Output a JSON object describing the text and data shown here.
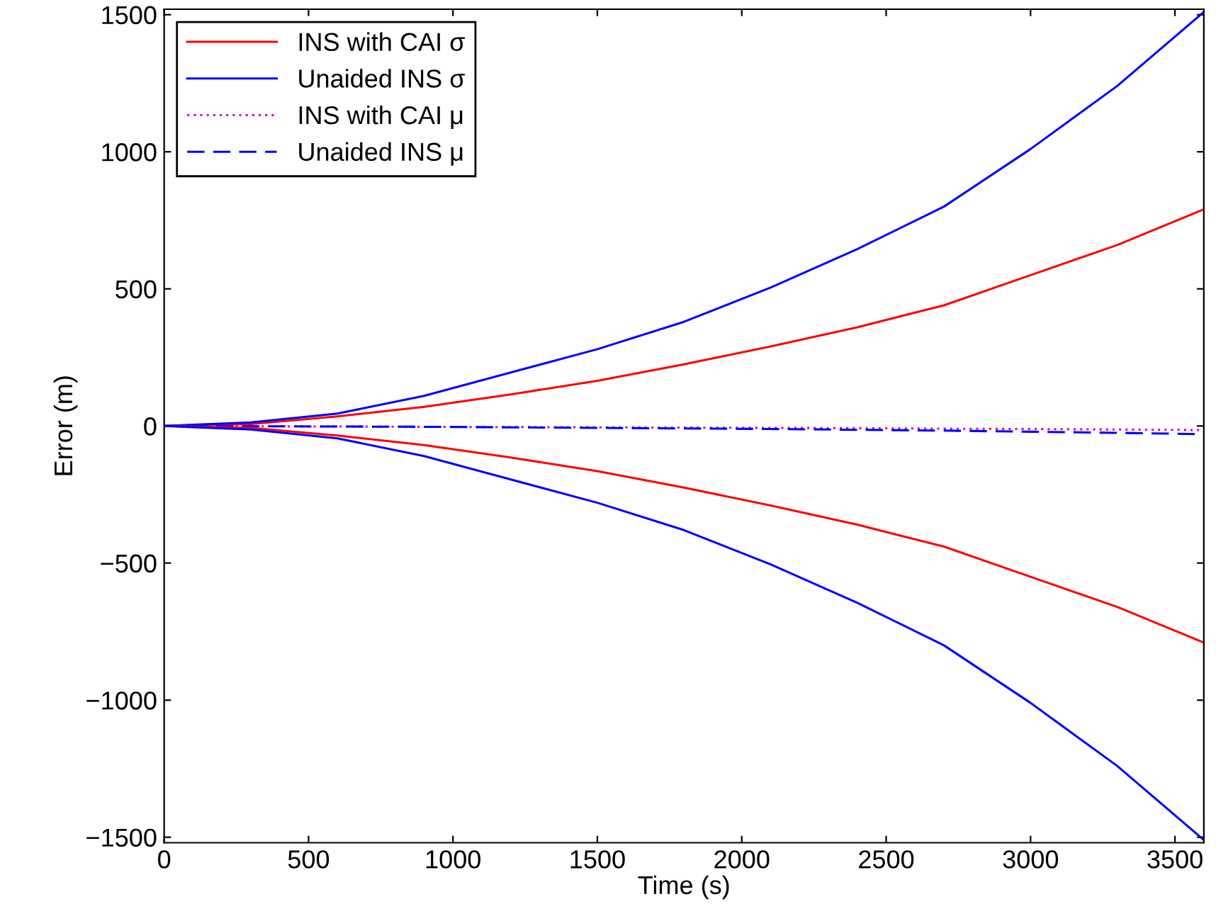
{
  "chart_data": {
    "type": "line",
    "xlabel": "Time (s)",
    "ylabel": "Error (m)",
    "x": [
      0,
      300,
      600,
      900,
      1200,
      1500,
      1800,
      2100,
      2400,
      2700,
      3000,
      3300,
      3600
    ],
    "series": [
      {
        "name": "INS with CAI σ",
        "color": "#ff0000",
        "line_style": "solid",
        "values": [
          0,
          7,
          35,
          70,
          115,
          165,
          225,
          290,
          360,
          440,
          550,
          660,
          790
        ]
      },
      {
        "name": "Unaided INS σ",
        "color": "#0000ff",
        "line_style": "solid",
        "values": [
          0,
          13,
          45,
          110,
          195,
          280,
          380,
          505,
          645,
          800,
          1010,
          1240,
          1510
        ]
      },
      {
        "name": "INS with CAI μ",
        "color": "#cc00cc",
        "line_style": "dotted",
        "values": [
          0,
          -1,
          -2,
          -3,
          -4,
          -5,
          -6,
          -7,
          -8,
          -10,
          -11,
          -13,
          -15
        ]
      },
      {
        "name": "Unaided INS μ",
        "color": "#0000ff",
        "line_style": "dashed",
        "values": [
          0,
          -1,
          -2,
          -3,
          -5,
          -7,
          -9,
          -11,
          -14,
          -17,
          -21,
          -25,
          -30
        ]
      },
      {
        "color": "#ff0000",
        "line_style": "solid",
        "values": [
          0,
          -7,
          -35,
          -70,
          -115,
          -165,
          -225,
          -290,
          -360,
          -440,
          -550,
          -660,
          -790
        ]
      },
      {
        "color": "#0000ff",
        "line_style": "solid",
        "values": [
          0,
          -13,
          -45,
          -110,
          -195,
          -280,
          -380,
          -505,
          -645,
          -800,
          -1010,
          -1240,
          -1510
        ]
      }
    ],
    "xlim": [
      0,
      3600
    ],
    "xticks": [
      0,
      500,
      1000,
      1500,
      2000,
      2500,
      3000,
      3500
    ],
    "ylim": [
      -1520,
      1520
    ],
    "yticks": [
      {
        "value": -1500,
        "label": "−1500"
      },
      {
        "value": -1000,
        "label": "−1000"
      },
      {
        "value": -500,
        "label": "−500"
      },
      0,
      500,
      1000,
      1500
    ],
    "legend": "top left",
    "grid": false
  }
}
